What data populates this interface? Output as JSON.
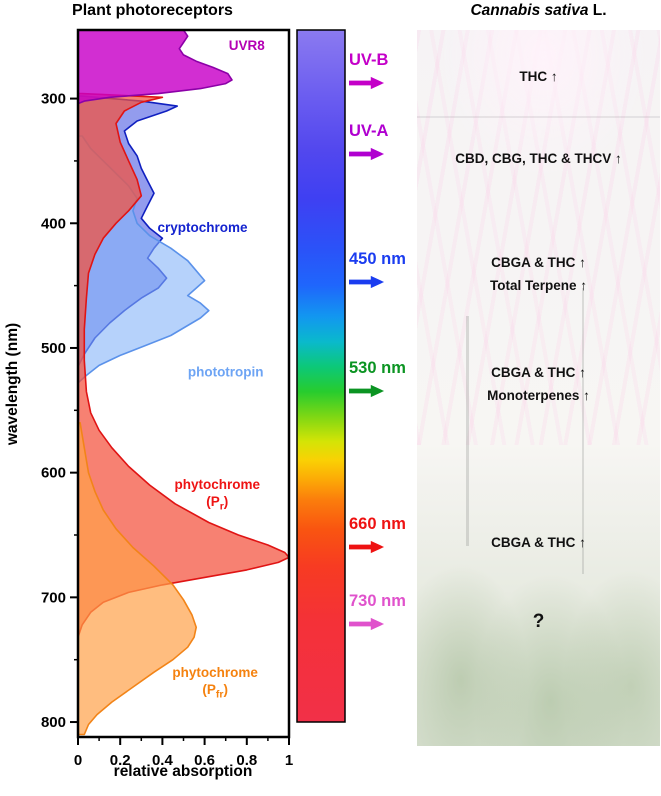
{
  "figure": {
    "left_title": "Plant photoreceptors",
    "right_title_italic": "Cannabis sativa",
    "right_title_normal": " L."
  },
  "chart_data": {
    "type": "area",
    "orientation": "horizontal",
    "title": "Plant photoreceptors",
    "xlabel": "relative absorption",
    "ylabel": "wavelength (nm)",
    "xlim": [
      0,
      1
    ],
    "ylim": [
      245,
      812
    ],
    "y_inverted": true,
    "grid": false,
    "x_ticks": [
      0,
      0.2,
      0.4,
      0.6,
      0.8,
      1
    ],
    "y_ticks": [
      300,
      400,
      500,
      600,
      700,
      800
    ],
    "x_minor_ticks": [
      0.1,
      0.3,
      0.5,
      0.7,
      0.9
    ],
    "y_minor_ticks": [
      350,
      450,
      550,
      650,
      750
    ],
    "series": [
      {
        "name": "cryptochrome",
        "fill": "#3a4ae0",
        "fill_opacity": 0.55,
        "stroke": "#1020c0",
        "points": [
          [
            298,
            0.02
          ],
          [
            302,
            0.3
          ],
          [
            306,
            0.47
          ],
          [
            310,
            0.42
          ],
          [
            318,
            0.28
          ],
          [
            326,
            0.22
          ],
          [
            336,
            0.24
          ],
          [
            346,
            0.28
          ],
          [
            356,
            0.3
          ],
          [
            366,
            0.33
          ],
          [
            376,
            0.36
          ],
          [
            386,
            0.33
          ],
          [
            396,
            0.3
          ],
          [
            404,
            0.34
          ],
          [
            412,
            0.4
          ],
          [
            420,
            0.36
          ],
          [
            428,
            0.33
          ],
          [
            436,
            0.38
          ],
          [
            444,
            0.42
          ],
          [
            452,
            0.38
          ],
          [
            460,
            0.3
          ],
          [
            470,
            0.22
          ],
          [
            480,
            0.15
          ],
          [
            492,
            0.08
          ],
          [
            505,
            0.03
          ],
          [
            515,
            0
          ]
        ]
      },
      {
        "name": "phototropin",
        "fill": "#85b4f8",
        "fill_opacity": 0.6,
        "stroke": "#5b92ea",
        "points": [
          [
            330,
            0.02
          ],
          [
            340,
            0.06
          ],
          [
            350,
            0.12
          ],
          [
            360,
            0.18
          ],
          [
            370,
            0.24
          ],
          [
            380,
            0.28
          ],
          [
            390,
            0.26
          ],
          [
            400,
            0.28
          ],
          [
            410,
            0.34
          ],
          [
            420,
            0.44
          ],
          [
            430,
            0.52
          ],
          [
            438,
            0.56
          ],
          [
            446,
            0.6
          ],
          [
            452,
            0.56
          ],
          [
            458,
            0.52
          ],
          [
            464,
            0.58
          ],
          [
            470,
            0.62
          ],
          [
            476,
            0.58
          ],
          [
            482,
            0.52
          ],
          [
            490,
            0.44
          ],
          [
            498,
            0.32
          ],
          [
            506,
            0.2
          ],
          [
            514,
            0.1
          ],
          [
            522,
            0.04
          ],
          [
            528,
            0
          ]
        ]
      },
      {
        "name": "phytochrome_Pr",
        "fill": "#f4503c",
        "fill_opacity": 0.72,
        "stroke": "#e01414",
        "points": [
          [
            296,
            0.02
          ],
          [
            299,
            0.4
          ],
          [
            303,
            0.3
          ],
          [
            310,
            0.22
          ],
          [
            320,
            0.18
          ],
          [
            335,
            0.2
          ],
          [
            350,
            0.24
          ],
          [
            365,
            0.28
          ],
          [
            378,
            0.3
          ],
          [
            390,
            0.24
          ],
          [
            400,
            0.18
          ],
          [
            412,
            0.12
          ],
          [
            425,
            0.08
          ],
          [
            440,
            0.05
          ],
          [
            460,
            0.04
          ],
          [
            485,
            0.03
          ],
          [
            510,
            0.03
          ],
          [
            535,
            0.04
          ],
          [
            552,
            0.06
          ],
          [
            566,
            0.1
          ],
          [
            580,
            0.16
          ],
          [
            595,
            0.24
          ],
          [
            610,
            0.34
          ],
          [
            625,
            0.46
          ],
          [
            640,
            0.62
          ],
          [
            650,
            0.76
          ],
          [
            658,
            0.9
          ],
          [
            664,
            0.98
          ],
          [
            668,
            1.0
          ],
          [
            672,
            0.95
          ],
          [
            678,
            0.8
          ],
          [
            684,
            0.6
          ],
          [
            690,
            0.4
          ],
          [
            696,
            0.24
          ],
          [
            704,
            0.12
          ],
          [
            712,
            0.06
          ],
          [
            722,
            0.02
          ],
          [
            732,
            0
          ]
        ]
      },
      {
        "name": "phytochrome_Pfr",
        "fill": "#ffa149",
        "fill_opacity": 0.7,
        "stroke": "#f28418",
        "points": [
          [
            560,
            0.01
          ],
          [
            580,
            0.03
          ],
          [
            600,
            0.05
          ],
          [
            615,
            0.08
          ],
          [
            630,
            0.12
          ],
          [
            645,
            0.18
          ],
          [
            660,
            0.26
          ],
          [
            675,
            0.36
          ],
          [
            690,
            0.45
          ],
          [
            702,
            0.5
          ],
          [
            714,
            0.54
          ],
          [
            724,
            0.56
          ],
          [
            732,
            0.55
          ],
          [
            740,
            0.52
          ],
          [
            750,
            0.45
          ],
          [
            760,
            0.36
          ],
          [
            772,
            0.26
          ],
          [
            784,
            0.16
          ],
          [
            794,
            0.09
          ],
          [
            802,
            0.05
          ],
          [
            810,
            0.03
          ]
        ]
      },
      {
        "name": "UVR8",
        "fill": "#c800c8",
        "fill_opacity": 0.82,
        "stroke": "#8c00a8",
        "points": [
          [
            245,
            0.5
          ],
          [
            250,
            0.52
          ],
          [
            255,
            0.5
          ],
          [
            260,
            0.48
          ],
          [
            265,
            0.5
          ],
          [
            270,
            0.56
          ],
          [
            275,
            0.64
          ],
          [
            280,
            0.71
          ],
          [
            285,
            0.73
          ],
          [
            288,
            0.7
          ],
          [
            292,
            0.58
          ],
          [
            296,
            0.38
          ],
          [
            299,
            0.15
          ],
          [
            302,
            0.03
          ],
          [
            304,
            0
          ]
        ]
      }
    ],
    "labels": [
      {
        "x": 0.8,
        "wavelength": 261,
        "color": "#b400b4",
        "lines": [
          [
            {
              "t": "UVR8"
            }
          ]
        ]
      },
      {
        "x": 0.59,
        "wavelength": 407,
        "color": "#1423cf",
        "lines": [
          [
            {
              "t": "cryptochrome"
            }
          ]
        ]
      },
      {
        "x": 0.7,
        "wavelength": 523,
        "color": "#6da4f4",
        "lines": [
          [
            {
              "t": "phototropin"
            }
          ]
        ]
      },
      {
        "x": 0.66,
        "wavelength": 613,
        "color": "#ee1414",
        "lines": [
          [
            {
              "t": "phytochrome"
            }
          ],
          [
            {
              "t": "(P"
            },
            {
              "t": "r",
              "sub": true
            },
            {
              "t": ")"
            }
          ]
        ]
      },
      {
        "x": 0.65,
        "wavelength": 764,
        "color": "#f5820f",
        "lines": [
          [
            {
              "t": "phytochrome"
            }
          ],
          [
            {
              "t": "(P"
            },
            {
              "t": "fr",
              "sub": true
            },
            {
              "t": ")"
            }
          ]
        ]
      }
    ]
  },
  "colorbar": {
    "stops": [
      [
        245,
        "#8b7af0"
      ],
      [
        300,
        "#6a5cf0"
      ],
      [
        340,
        "#5348ee"
      ],
      [
        380,
        "#3f40f2"
      ],
      [
        420,
        "#2b52f8"
      ],
      [
        450,
        "#1f66fc"
      ],
      [
        475,
        "#1297f0"
      ],
      [
        495,
        "#0ab9cc"
      ],
      [
        515,
        "#0cc878"
      ],
      [
        535,
        "#27cc2e"
      ],
      [
        555,
        "#7ed714"
      ],
      [
        575,
        "#d4e406"
      ],
      [
        590,
        "#fad104"
      ],
      [
        605,
        "#fcab06"
      ],
      [
        622,
        "#fb7d0c"
      ],
      [
        645,
        "#f95510"
      ],
      [
        675,
        "#f73b22"
      ],
      [
        720,
        "#f43138"
      ],
      [
        800,
        "#f23048"
      ]
    ]
  },
  "spectrum": {
    "labels": [
      {
        "text": "UV-B",
        "color": "#c400c8"
      },
      {
        "text": "UV-A",
        "color": "#b000d0"
      },
      {
        "text": "450 nm",
        "color": "#1a3cf0"
      },
      {
        "text": "530 nm",
        "color": "#0b9422"
      },
      {
        "text": "660 nm",
        "color": "#ee1212"
      },
      {
        "text": "730 nm",
        "color": "#e052cc"
      }
    ]
  },
  "right_panel": {
    "overlays": [
      {
        "lines": [
          "THC ↑"
        ]
      },
      {
        "lines": [
          "CBD, CBG, THC & THCV ↑"
        ]
      },
      {
        "lines": [
          "CBGA & THC ↑",
          "Total Terpene ↑"
        ]
      },
      {
        "lines": [
          "CBGA & THC ↑",
          "Monoterpenes ↑"
        ]
      },
      {
        "lines": [
          "CBGA & THC ↑"
        ]
      },
      {
        "lines": [
          "?"
        ]
      }
    ]
  }
}
